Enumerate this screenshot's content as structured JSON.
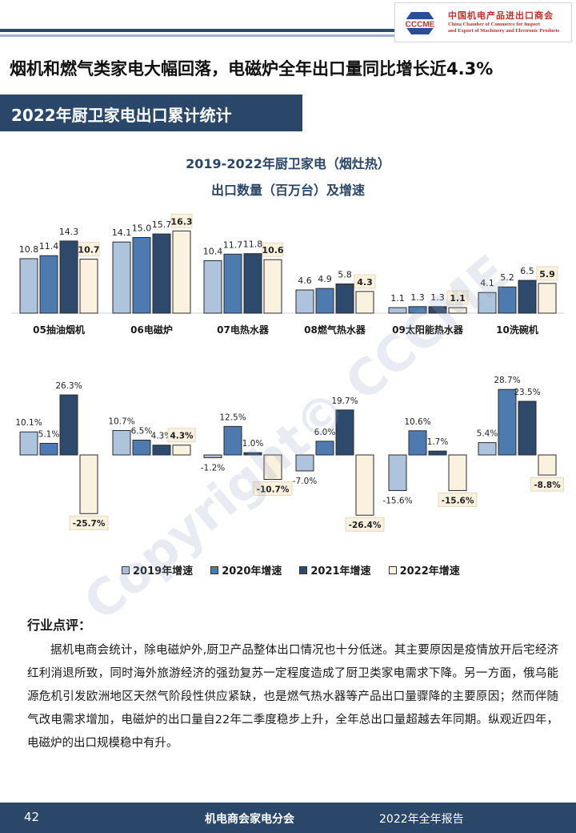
{
  "header": {
    "logo_acronym": "CCCME",
    "logo_cn": "中国机电产品进出口商会",
    "logo_en_line1": "China Chamber of Commerce for Import",
    "logo_en_line2": "and Export of Machinery and Electronic Products"
  },
  "headline": "烟机和燃气类家电大幅回落，电磁炉全年出口量同比增长近4.3%",
  "section_title": "2022年厨卫家电出口累计统计",
  "chart_data": {
    "type": "bar",
    "title": "2019-2022年厨卫家电（烟灶热）",
    "subtitle": "出口数量（百万台）及增速",
    "categories": [
      "05抽油烟机",
      "06电磁炉",
      "07电热水器",
      "08燃气热水器",
      "09太阳能热水器",
      "10洗碗机"
    ],
    "series": [
      {
        "name": "2019年增速",
        "color": "#aec3dc",
        "quantity": [
          10.8,
          14.1,
          10.4,
          4.6,
          1.1,
          4.1
        ],
        "growth": [
          10.1,
          10.7,
          -1.2,
          -7.0,
          -15.6,
          5.4
        ]
      },
      {
        "name": "2020年增速",
        "color": "#4d7bb0",
        "quantity": [
          11.4,
          15.0,
          11.7,
          4.9,
          1.3,
          5.2
        ],
        "growth": [
          5.1,
          6.5,
          12.5,
          6.0,
          10.6,
          28.7
        ]
      },
      {
        "name": "2021年增速",
        "color": "#2d4a6c",
        "quantity": [
          14.3,
          15.7,
          11.8,
          5.8,
          1.3,
          6.5
        ],
        "growth": [
          26.3,
          4.3,
          1.0,
          19.7,
          1.7,
          23.5
        ]
      },
      {
        "name": "2022年增速",
        "color": "#fbf1df",
        "quantity": [
          10.7,
          16.3,
          10.6,
          4.3,
          1.1,
          5.9
        ],
        "growth": [
          -25.7,
          4.3,
          -10.7,
          -26.4,
          -15.6,
          -8.8
        ]
      }
    ],
    "quantity_labels": [
      [
        "10.8",
        "11.4",
        "14.3",
        "10.7"
      ],
      [
        "14.1",
        "15.0",
        "15.7",
        "16.3"
      ],
      [
        "10.4",
        "11.7",
        "11.8",
        "10.6"
      ],
      [
        "4.6",
        "4.9",
        "5.8",
        "4.3"
      ],
      [
        "1.1",
        "1.3",
        "1.3",
        "1.1"
      ],
      [
        "4.1",
        "5.2",
        "6.5",
        "5.9"
      ]
    ],
    "growth_labels": [
      [
        "10.1%",
        "5.1%",
        "26.3%",
        "-25.7%"
      ],
      [
        "10.7%",
        "6.5%",
        "4.3%",
        "4.3%"
      ],
      [
        "-1.2%",
        "12.5%",
        "1.0%",
        "-10.7%"
      ],
      [
        "-7.0%",
        "6.0%",
        "19.7%",
        "-26.4%"
      ],
      [
        "-15.6%",
        "10.6%",
        "1.7%",
        "-15.6%"
      ],
      [
        "5.4%",
        "28.7%",
        "23.5%",
        "-8.8%"
      ]
    ],
    "legend_position": "bottom",
    "grid": false
  },
  "watermark": "Copyright© CCCME",
  "comment": {
    "heading": "行业点评：",
    "body": "据机电商会统计，除电磁炉外,厨卫产品整体出口情况也十分低迷。其主要原因是疫情放开后宅经济红利消退所致，同时海外旅游经济的强劲复苏一定程度造成了厨卫类家电需求下降。另一方面，俄乌能源危机引发欧洲地区天然气阶段性供应紧缺，也是燃气热水器等产品出口量骤降的主要原因；然而伴随气改电需求增加，电磁炉的出口量自22年二季度稳步上升，全年总出口量超越去年同期。纵观近四年，电磁炉的出口规模稳中有升。"
  },
  "footer": {
    "page_number": "42",
    "organization": "机电商会家电分会",
    "report": "2022年全年报告"
  }
}
